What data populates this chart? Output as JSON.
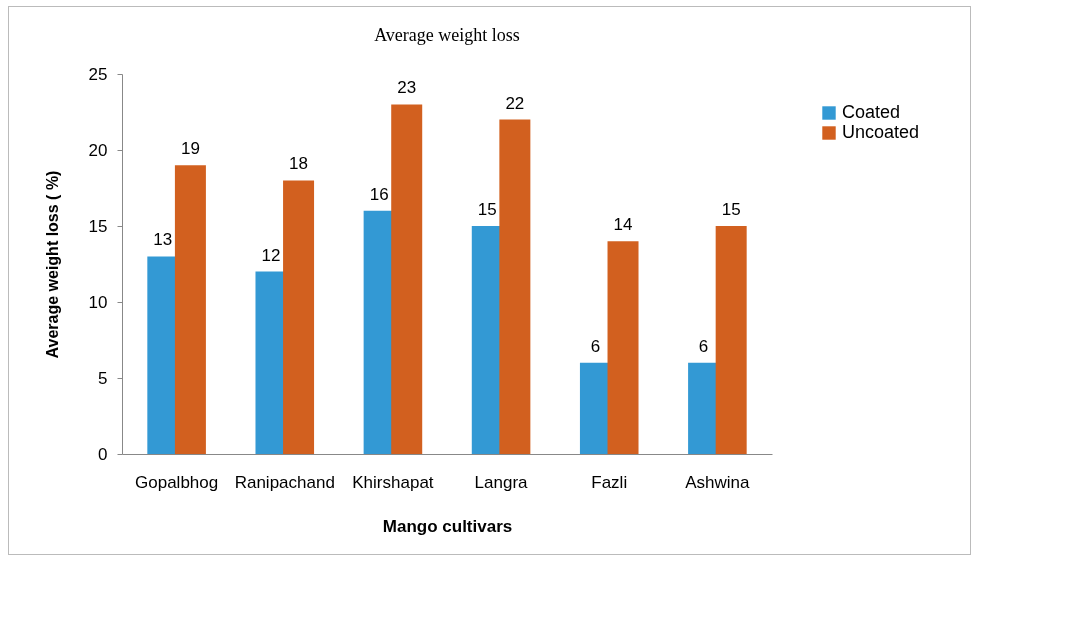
{
  "chart_data": {
    "type": "bar",
    "title": "Average weight loss",
    "xlabel": "Mango cultivars",
    "ylabel": "Average weight loss ( %)",
    "categories": [
      "Gopalbhog",
      "Ranipachand",
      "Khirshapat",
      "Langra",
      "Fazli",
      "Ashwina"
    ],
    "series": [
      {
        "name": "Coated",
        "color": "#3399d4",
        "values": [
          13,
          12,
          16,
          15,
          6,
          6
        ]
      },
      {
        "name": "Uncoated",
        "color": "#d2601f",
        "values": [
          19,
          18,
          23,
          22,
          14,
          15
        ]
      }
    ],
    "ylim": [
      0,
      25
    ],
    "yticks": [
      0,
      5,
      10,
      15,
      20,
      25
    ],
    "grid": false,
    "legend": "right",
    "data_labels": true
  }
}
